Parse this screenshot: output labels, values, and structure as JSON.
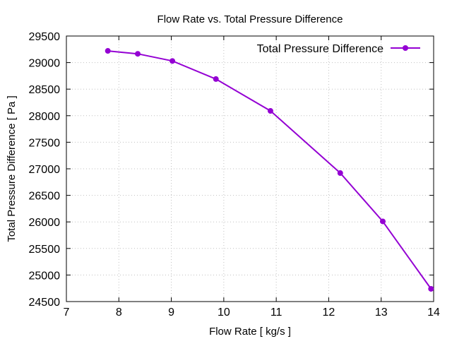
{
  "chart_data": {
    "type": "line",
    "title": "Flow Rate vs. Total Pressure Difference",
    "xlabel": "Flow Rate [ kg/s ]",
    "ylabel": "Total Pressure Difference [ Pa ]",
    "xlim": [
      7,
      14
    ],
    "ylim": [
      24500,
      29500
    ],
    "xticks": [
      "7",
      "8",
      "9",
      "10",
      "11",
      "12",
      "13",
      "14"
    ],
    "xtick_values": [
      7,
      8,
      9,
      10,
      11,
      12,
      13,
      14
    ],
    "yticks": [
      "24500",
      "25000",
      "25500",
      "26000",
      "26500",
      "27000",
      "27500",
      "28000",
      "28500",
      "29000",
      "29500"
    ],
    "ytick_values": [
      24500,
      25000,
      25500,
      26000,
      26500,
      27000,
      27500,
      28000,
      28500,
      29000,
      29500
    ],
    "grid": true,
    "legend_position": "top-right",
    "series": [
      {
        "name": "Total Pressure Difference",
        "color": "#9400d3",
        "marker": "circle",
        "x": [
          7.79,
          8.36,
          9.02,
          9.85,
          10.89,
          12.22,
          13.03,
          13.95
        ],
        "y": [
          29220,
          29165,
          29030,
          28690,
          28090,
          26920,
          26010,
          24740
        ]
      }
    ]
  }
}
